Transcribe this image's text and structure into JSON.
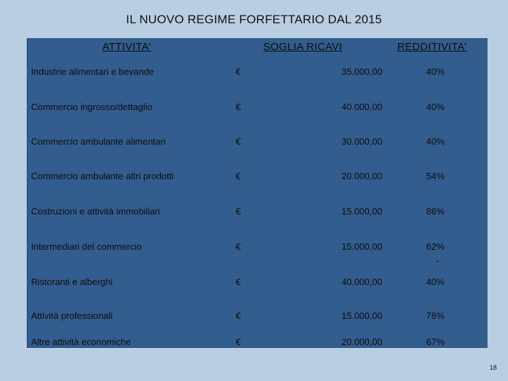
{
  "title": "IL NUOVO REGIME FORFETTARIO DAL 2015",
  "headers": {
    "attivita": "ATTIVITA'",
    "soglia": "SOGLIA RICAVI",
    "redditivita": "REDDITIVITA'"
  },
  "rows": [
    {
      "name": "Industrie alimentari e bevande",
      "currency": "€",
      "soglia": "35.000,00",
      "redditivita": "40%"
    },
    {
      "name": "Commercio ingrosso/dettaglio",
      "currency": "€",
      "soglia": "40.000,00",
      "redditivita": "40%"
    },
    {
      "name": "Commercio ambulante alimentari",
      "currency": "€",
      "soglia": "30.000,00",
      "redditivita": "40%"
    },
    {
      "name": "Commercio ambulante altri prodotti",
      "currency": "€",
      "soglia": "20.000,00",
      "redditivita": "54%"
    },
    {
      "name": "Costruzioni e attività immobiliari",
      "currency": "€",
      "soglia": "15.000,00",
      "redditivita": "86%"
    },
    {
      "name": "Intermediari del commercio",
      "currency": "€",
      "soglia": "15.000,00",
      "redditivita": "62%"
    },
    {
      "name": "Ristoranti e alberghi",
      "currency": "€",
      "soglia": "40.000,00",
      "redditivita": "40%"
    },
    {
      "name": "Attività professionali",
      "currency": "€",
      "soglia": "15.000,00",
      "redditivita": "78%"
    },
    {
      "name": "Altre attività economiche",
      "currency": "€",
      "soglia": "20.000,00",
      "redditivita": "67%"
    }
  ],
  "dash": "-",
  "page_number": "18"
}
